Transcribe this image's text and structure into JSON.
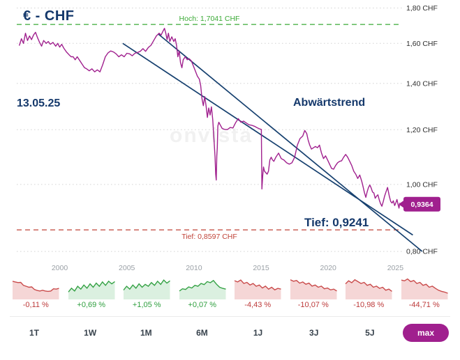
{
  "header": {
    "title": "€ - CHF"
  },
  "chart": {
    "date_label": "13.05.25",
    "trend_label": "Abwärtstrend",
    "low_annotation": "Tief: 0,9241",
    "watermark": "onvista",
    "colors": {
      "price": "#a0208e",
      "trend": "#16406f",
      "high": "#3aaa35",
      "low": "#bf4136",
      "accent": "#a0208e"
    }
  },
  "chart_data": {
    "type": "line",
    "title": "€ - CHF",
    "scale": "log",
    "grid": true,
    "xlim": [
      1996.8,
      2025.5
    ],
    "ylim": [
      0.78,
      1.84
    ],
    "x_ticks": [
      {
        "value": 2000,
        "label": "2000"
      },
      {
        "value": 2005,
        "label": "2005"
      },
      {
        "value": 2010,
        "label": "2010"
      },
      {
        "value": 2015,
        "label": "2015"
      },
      {
        "value": 2020,
        "label": "2020"
      },
      {
        "value": 2025,
        "label": "2025"
      }
    ],
    "y_ticks": [
      {
        "value": 1.8,
        "label": "1,80 CHF"
      },
      {
        "value": 1.6,
        "label": "1,60 CHF"
      },
      {
        "value": 1.4,
        "label": "1,40 CHF"
      },
      {
        "value": 1.2,
        "label": "1,20 CHF"
      },
      {
        "value": 1.0,
        "label": "1,00 CHF"
      },
      {
        "value": 0.8,
        "label": "0,80 CHF"
      }
    ],
    "levels": [
      {
        "value": 1.7041,
        "label": "Hoch: 1,7041 CHF",
        "kind": "high"
      },
      {
        "value": 0.8597,
        "label": "Tief: 0,8597 CHF",
        "kind": "low"
      }
    ],
    "trendlines": [
      {
        "x1": 2007.35,
        "v1": 1.65,
        "x2": 2027.0,
        "v2": 0.8
      },
      {
        "x1": 2004.7,
        "v1": 1.6,
        "x2": 2026.3,
        "v2": 0.845
      }
    ],
    "last": {
      "x": 2025.4,
      "value": 0.9364,
      "label": "0,9364"
    },
    "series": [
      {
        "name": "EUR/CHF",
        "points": [
          [
            1997.0,
            1.59
          ],
          [
            1997.15,
            1.625
          ],
          [
            1997.3,
            1.6
          ],
          [
            1997.45,
            1.655
          ],
          [
            1997.6,
            1.615
          ],
          [
            1997.75,
            1.64
          ],
          [
            1997.9,
            1.62
          ],
          [
            1998.05,
            1.645
          ],
          [
            1998.2,
            1.66
          ],
          [
            1998.35,
            1.63
          ],
          [
            1998.5,
            1.605
          ],
          [
            1998.65,
            1.585
          ],
          [
            1998.8,
            1.615
          ],
          [
            1999.0,
            1.6
          ],
          [
            1999.15,
            1.61
          ],
          [
            1999.3,
            1.595
          ],
          [
            1999.5,
            1.605
          ],
          [
            1999.7,
            1.585
          ],
          [
            1999.85,
            1.6
          ],
          [
            2000.0,
            1.58
          ],
          [
            2000.15,
            1.595
          ],
          [
            2000.3,
            1.575
          ],
          [
            2000.5,
            1.555
          ],
          [
            2000.7,
            1.54
          ],
          [
            2000.85,
            1.53
          ],
          [
            2001.0,
            1.53
          ],
          [
            2001.15,
            1.515
          ],
          [
            2001.3,
            1.53
          ],
          [
            2001.5,
            1.51
          ],
          [
            2001.7,
            1.49
          ],
          [
            2001.85,
            1.475
          ],
          [
            2002.0,
            1.47
          ],
          [
            2002.2,
            1.46
          ],
          [
            2002.4,
            1.47
          ],
          [
            2002.6,
            1.455
          ],
          [
            2002.8,
            1.465
          ],
          [
            2003.0,
            1.455
          ],
          [
            2003.2,
            1.49
          ],
          [
            2003.4,
            1.53
          ],
          [
            2003.6,
            1.55
          ],
          [
            2003.8,
            1.56
          ],
          [
            2004.0,
            1.555
          ],
          [
            2004.2,
            1.545
          ],
          [
            2004.4,
            1.53
          ],
          [
            2004.6,
            1.54
          ],
          [
            2004.8,
            1.53
          ],
          [
            2005.0,
            1.548
          ],
          [
            2005.2,
            1.545
          ],
          [
            2005.4,
            1.535
          ],
          [
            2005.6,
            1.548
          ],
          [
            2005.8,
            1.552
          ],
          [
            2006.0,
            1.558
          ],
          [
            2006.2,
            1.572
          ],
          [
            2006.4,
            1.558
          ],
          [
            2006.6,
            1.578
          ],
          [
            2006.8,
            1.59
          ],
          [
            2007.0,
            1.615
          ],
          [
            2007.2,
            1.64
          ],
          [
            2007.4,
            1.655
          ],
          [
            2007.55,
            1.645
          ],
          [
            2007.7,
            1.667
          ],
          [
            2007.8,
            1.682
          ],
          [
            2007.9,
            1.655
          ],
          [
            2008.0,
            1.62
          ],
          [
            2008.1,
            1.655
          ],
          [
            2008.2,
            1.61
          ],
          [
            2008.35,
            1.635
          ],
          [
            2008.5,
            1.61
          ],
          [
            2008.6,
            1.625
          ],
          [
            2008.7,
            1.59
          ],
          [
            2008.8,
            1.53
          ],
          [
            2008.9,
            1.56
          ],
          [
            2009.0,
            1.5
          ],
          [
            2009.1,
            1.475
          ],
          [
            2009.2,
            1.515
          ],
          [
            2009.35,
            1.53
          ],
          [
            2009.5,
            1.515
          ],
          [
            2009.65,
            1.52
          ],
          [
            2009.8,
            1.51
          ],
          [
            2009.95,
            1.485
          ],
          [
            2010.1,
            1.46
          ],
          [
            2010.25,
            1.435
          ],
          [
            2010.4,
            1.42
          ],
          [
            2010.5,
            1.39
          ],
          [
            2010.6,
            1.33
          ],
          [
            2010.7,
            1.3
          ],
          [
            2010.8,
            1.34
          ],
          [
            2010.9,
            1.3
          ],
          [
            2011.0,
            1.25
          ],
          [
            2011.1,
            1.29
          ],
          [
            2011.2,
            1.26
          ],
          [
            2011.3,
            1.295
          ],
          [
            2011.4,
            1.24
          ],
          [
            2011.5,
            1.155
          ],
          [
            2011.57,
            1.095
          ],
          [
            2011.62,
            1.035
          ],
          [
            2011.66,
            1.015
          ],
          [
            2011.7,
            1.1
          ],
          [
            2011.74,
            1.13
          ],
          [
            2011.78,
            1.215
          ],
          [
            2011.85,
            1.23
          ],
          [
            2011.95,
            1.22
          ],
          [
            2012.1,
            1.205
          ],
          [
            2012.3,
            1.201
          ],
          [
            2012.5,
            1.201
          ],
          [
            2012.7,
            1.209
          ],
          [
            2012.9,
            1.207
          ],
          [
            2013.1,
            1.228
          ],
          [
            2013.3,
            1.245
          ],
          [
            2013.5,
            1.23
          ],
          [
            2013.7,
            1.235
          ],
          [
            2013.9,
            1.227
          ],
          [
            2014.1,
            1.22
          ],
          [
            2014.3,
            1.218
          ],
          [
            2014.5,
            1.214
          ],
          [
            2014.7,
            1.208
          ],
          [
            2014.9,
            1.203
          ],
          [
            2015.02,
            1.201
          ],
          [
            2015.06,
            0.985
          ],
          [
            2015.12,
            1.03
          ],
          [
            2015.18,
            1.06
          ],
          [
            2015.25,
            1.045
          ],
          [
            2015.35,
            1.04
          ],
          [
            2015.45,
            1.035
          ],
          [
            2015.55,
            1.045
          ],
          [
            2015.65,
            1.085
          ],
          [
            2015.75,
            1.095
          ],
          [
            2015.85,
            1.085
          ],
          [
            2015.95,
            1.08
          ],
          [
            2016.1,
            1.095
          ],
          [
            2016.3,
            1.11
          ],
          [
            2016.5,
            1.09
          ],
          [
            2016.7,
            1.085
          ],
          [
            2016.9,
            1.075
          ],
          [
            2017.1,
            1.07
          ],
          [
            2017.3,
            1.075
          ],
          [
            2017.5,
            1.095
          ],
          [
            2017.7,
            1.14
          ],
          [
            2017.9,
            1.165
          ],
          [
            2018.1,
            1.175
          ],
          [
            2018.25,
            1.197
          ],
          [
            2018.4,
            1.185
          ],
          [
            2018.5,
            1.16
          ],
          [
            2018.62,
            1.14
          ],
          [
            2018.75,
            1.125
          ],
          [
            2018.9,
            1.13
          ],
          [
            2019.05,
            1.135
          ],
          [
            2019.2,
            1.13
          ],
          [
            2019.35,
            1.14
          ],
          [
            2019.5,
            1.11
          ],
          [
            2019.65,
            1.09
          ],
          [
            2019.8,
            1.1
          ],
          [
            2019.95,
            1.085
          ],
          [
            2020.1,
            1.07
          ],
          [
            2020.25,
            1.055
          ],
          [
            2020.4,
            1.052
          ],
          [
            2020.55,
            1.065
          ],
          [
            2020.7,
            1.075
          ],
          [
            2020.85,
            1.08
          ],
          [
            2021.0,
            1.082
          ],
          [
            2021.15,
            1.095
          ],
          [
            2021.3,
            1.105
          ],
          [
            2021.45,
            1.095
          ],
          [
            2021.6,
            1.08
          ],
          [
            2021.75,
            1.065
          ],
          [
            2021.9,
            1.045
          ],
          [
            2022.05,
            1.035
          ],
          [
            2022.2,
            1.02
          ],
          [
            2022.35,
            1.032
          ],
          [
            2022.5,
            1.01
          ],
          [
            2022.6,
            0.992
          ],
          [
            2022.7,
            0.973
          ],
          [
            2022.8,
            0.958
          ],
          [
            2022.9,
            0.976
          ],
          [
            2023.0,
            0.99
          ],
          [
            2023.1,
            0.998
          ],
          [
            2023.2,
            0.988
          ],
          [
            2023.3,
            0.975
          ],
          [
            2023.4,
            0.972
          ],
          [
            2023.5,
            0.955
          ],
          [
            2023.6,
            0.962
          ],
          [
            2023.7,
            0.966
          ],
          [
            2023.8,
            0.95
          ],
          [
            2023.9,
            0.938
          ],
          [
            2024.0,
            0.93
          ],
          [
            2024.1,
            0.945
          ],
          [
            2024.2,
            0.962
          ],
          [
            2024.3,
            0.975
          ],
          [
            2024.42,
            0.99
          ],
          [
            2024.55,
            0.962
          ],
          [
            2024.65,
            0.945
          ],
          [
            2024.75,
            0.94
          ],
          [
            2024.85,
            0.947
          ],
          [
            2024.95,
            0.932
          ],
          [
            2025.05,
            0.942
          ],
          [
            2025.12,
            0.951
          ],
          [
            2025.2,
            0.936
          ],
          [
            2025.27,
            0.9241
          ],
          [
            2025.33,
            0.939
          ],
          [
            2025.4,
            0.9364
          ]
        ]
      }
    ]
  },
  "periods": [
    {
      "label": "1T",
      "change": "-0,11 %",
      "dir": "down",
      "spark": [
        0.82,
        0.78,
        0.75,
        0.76,
        0.6,
        0.55,
        0.5,
        0.52,
        0.38,
        0.33,
        0.3,
        0.34,
        0.3,
        0.28,
        0.3,
        0.42,
        0.4,
        0.44
      ]
    },
    {
      "label": "1W",
      "change": "+0,69 %",
      "dir": "up",
      "spark": [
        0.25,
        0.45,
        0.3,
        0.55,
        0.4,
        0.62,
        0.45,
        0.68,
        0.5,
        0.72,
        0.55,
        0.78,
        0.6,
        0.82,
        0.68,
        0.8
      ]
    },
    {
      "label": "1M",
      "change": "+1,05 %",
      "dir": "up",
      "spark": [
        0.35,
        0.55,
        0.4,
        0.62,
        0.45,
        0.68,
        0.5,
        0.65,
        0.55,
        0.75,
        0.6,
        0.82,
        0.65,
        0.88,
        0.72,
        0.84
      ]
    },
    {
      "label": "6M",
      "change": "+0,07 %",
      "dir": "up",
      "spark": [
        0.3,
        0.42,
        0.38,
        0.52,
        0.46,
        0.6,
        0.55,
        0.7,
        0.64,
        0.8,
        0.74,
        0.86,
        0.66,
        0.5,
        0.44,
        0.4
      ]
    },
    {
      "label": "1J",
      "change": "-4,43 %",
      "dir": "down",
      "spark": [
        0.85,
        0.78,
        0.88,
        0.7,
        0.76,
        0.62,
        0.7,
        0.55,
        0.62,
        0.46,
        0.56,
        0.4,
        0.5,
        0.36,
        0.44,
        0.4
      ]
    },
    {
      "label": "3J",
      "change": "-10,07 %",
      "dir": "down",
      "spark": [
        0.9,
        0.82,
        0.86,
        0.72,
        0.78,
        0.66,
        0.72,
        0.56,
        0.62,
        0.5,
        0.56,
        0.42,
        0.46,
        0.36,
        0.4,
        0.3
      ]
    },
    {
      "label": "5J",
      "change": "-10,98 %",
      "dir": "down",
      "spark": [
        0.68,
        0.84,
        0.74,
        0.9,
        0.8,
        0.7,
        0.76,
        0.6,
        0.66,
        0.5,
        0.56,
        0.44,
        0.5,
        0.34,
        0.4,
        0.28
      ]
    },
    {
      "label": "max",
      "change": "-44,71 %",
      "dir": "down",
      "spark": [
        0.88,
        0.84,
        0.94,
        0.8,
        0.86,
        0.7,
        0.76,
        0.6,
        0.66,
        0.5,
        0.56,
        0.44,
        0.34,
        0.28,
        0.24,
        0.18
      ]
    }
  ],
  "range_buttons": [
    {
      "label": "1T",
      "active": false
    },
    {
      "label": "1W",
      "active": false
    },
    {
      "label": "1M",
      "active": false
    },
    {
      "label": "6M",
      "active": false
    },
    {
      "label": "1J",
      "active": false
    },
    {
      "label": "3J",
      "active": false
    },
    {
      "label": "5J",
      "active": false
    },
    {
      "label": "max",
      "active": true
    }
  ]
}
